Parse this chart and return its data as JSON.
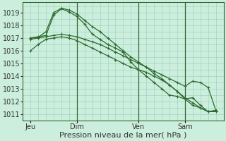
{
  "bg_color": "#cceedd",
  "grid_color": "#99ccbb",
  "line_color": "#2d6a2d",
  "ylim": [
    1010.5,
    1019.8
  ],
  "yticks": [
    1011,
    1012,
    1013,
    1014,
    1015,
    1016,
    1017,
    1018,
    1019
  ],
  "xlabel": "Pression niveau de la mer( hPa )",
  "day_labels": [
    "Jeu",
    "Dim",
    "Ven",
    "Sam"
  ],
  "day_positions": [
    0,
    6,
    14,
    20
  ],
  "vline_positions": [
    6,
    14,
    20
  ],
  "xmin": -1,
  "xmax": 25,
  "series": [
    {
      "x": [
        0,
        1,
        2,
        3,
        4,
        5,
        6,
        7,
        8,
        9,
        10,
        11,
        12,
        13,
        14,
        15,
        16,
        17,
        18,
        19,
        20,
        21,
        22,
        23,
        24
      ],
      "y": [
        1017.0,
        1017.1,
        1017.2,
        1018.8,
        1019.3,
        1019.05,
        1018.7,
        1018.1,
        1017.3,
        1016.9,
        1016.5,
        1016.2,
        1015.9,
        1015.1,
        1014.5,
        1014.0,
        1013.5,
        1013.0,
        1012.5,
        1012.4,
        1012.2,
        1012.3,
        1011.7,
        1011.2,
        1011.3
      ]
    },
    {
      "x": [
        0,
        1,
        2,
        3,
        4,
        5,
        6,
        7,
        8,
        9,
        10,
        11,
        12,
        13,
        14,
        15,
        16,
        17,
        18,
        19,
        20,
        21,
        22,
        23,
        24
      ],
      "y": [
        1017.0,
        1017.05,
        1017.5,
        1019.0,
        1019.35,
        1019.2,
        1018.9,
        1018.4,
        1017.9,
        1017.5,
        1017.0,
        1016.5,
        1016.0,
        1015.5,
        1015.1,
        1014.7,
        1014.2,
        1013.8,
        1013.3,
        1012.8,
        1012.3,
        1011.9,
        1011.5,
        1011.2,
        1011.3
      ]
    },
    {
      "x": [
        0,
        1,
        2,
        3,
        4,
        5,
        6,
        7,
        8,
        9,
        10,
        11,
        12,
        13,
        14,
        15,
        16,
        17,
        18,
        19,
        20,
        21,
        22,
        23,
        24
      ],
      "y": [
        1016.9,
        1017.0,
        1017.1,
        1017.2,
        1017.3,
        1017.2,
        1017.1,
        1016.9,
        1016.7,
        1016.5,
        1016.2,
        1015.9,
        1015.6,
        1015.3,
        1015.0,
        1014.7,
        1014.4,
        1014.1,
        1013.8,
        1013.5,
        1013.2,
        1013.6,
        1013.5,
        1013.1,
        1011.3
      ]
    },
    {
      "x": [
        0,
        1,
        2,
        3,
        4,
        5,
        6,
        7,
        8,
        9,
        10,
        11,
        12,
        13,
        14,
        15,
        16,
        17,
        18,
        19,
        20,
        21,
        22,
        23,
        24
      ],
      "y": [
        1016.0,
        1016.5,
        1016.9,
        1017.0,
        1017.1,
        1017.0,
        1016.8,
        1016.5,
        1016.2,
        1015.9,
        1015.6,
        1015.3,
        1015.0,
        1014.7,
        1014.5,
        1014.3,
        1014.0,
        1013.7,
        1013.3,
        1012.8,
        1012.2,
        1011.7,
        1011.5,
        1011.2,
        1011.2
      ]
    }
  ],
  "tick_fontsize": 7,
  "label_fontsize": 8,
  "spine_color": "#336633"
}
